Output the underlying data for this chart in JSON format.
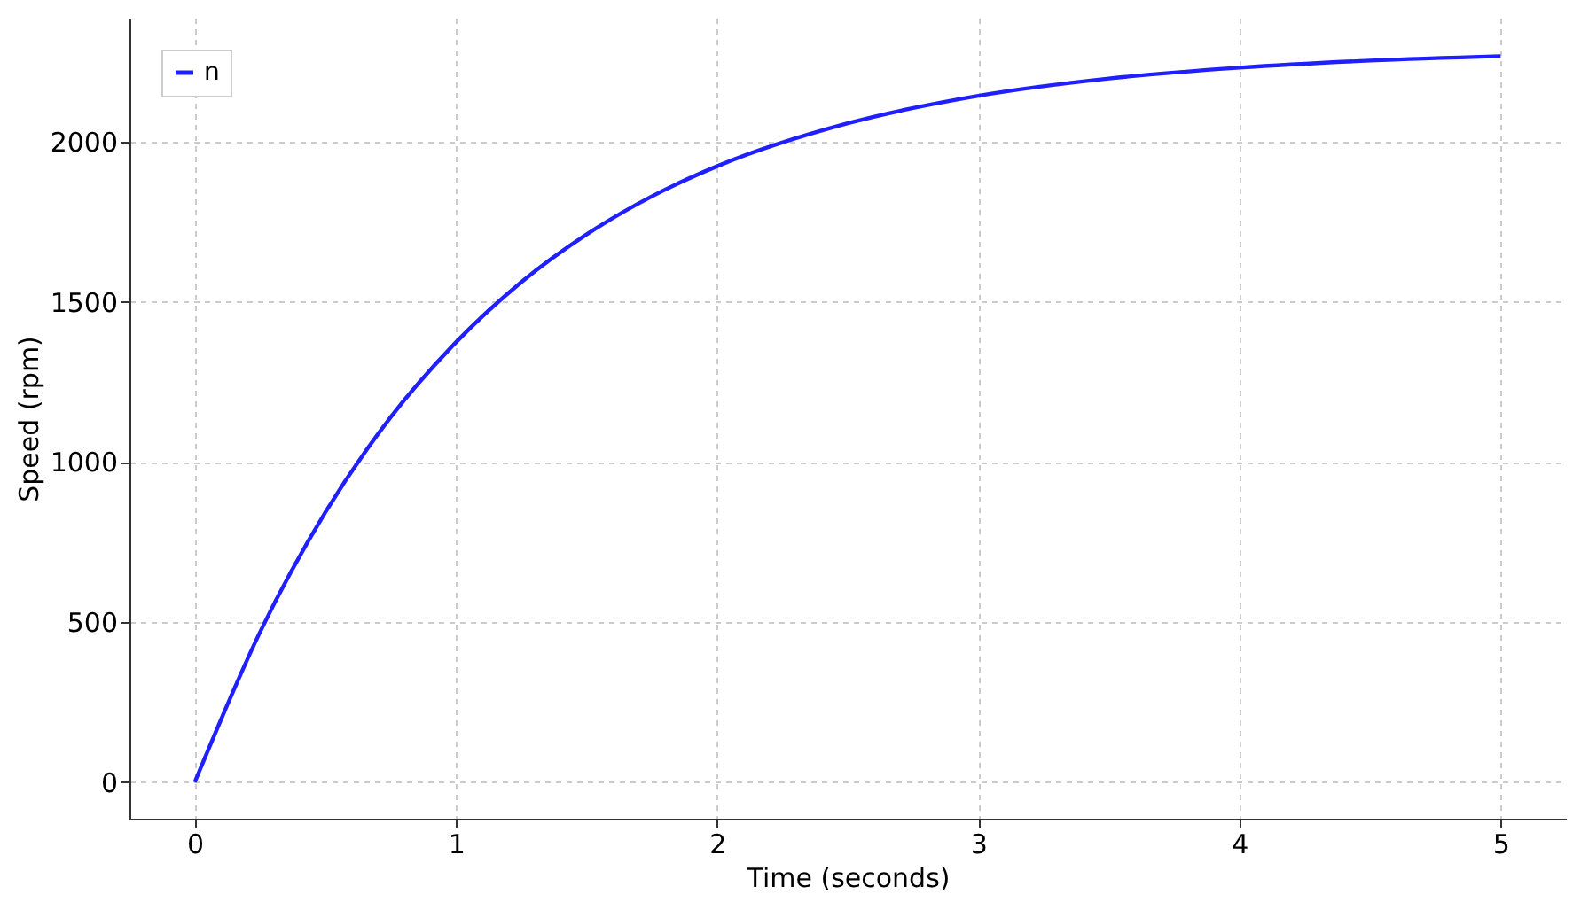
{
  "chart_data": {
    "type": "line",
    "xlabel": "Time (seconds)",
    "ylabel": "Speed (rpm)",
    "x": [
      0,
      0.25,
      0.5,
      0.75,
      1,
      1.25,
      1.5,
      1.75,
      2,
      2.5,
      3,
      3.5,
      4,
      4.5,
      5
    ],
    "series": [
      {
        "name": "n",
        "color": "#1f1fff",
        "values": [
          0,
          469,
          843,
          1140,
          1374,
          1562,
          1711,
          1830,
          1924,
          2058,
          2144,
          2198,
          2232,
          2254,
          2268
        ]
      }
    ],
    "xlim": [
      -0.25,
      5.25
    ],
    "xticks": [
      0,
      1,
      2,
      3,
      4,
      5
    ],
    "ylim": [
      -114,
      2388
    ],
    "yticks": [
      0,
      500,
      1000,
      1500,
      2000
    ],
    "grid": true,
    "legend": "top left",
    "marker": "none",
    "line_style": "solid"
  }
}
